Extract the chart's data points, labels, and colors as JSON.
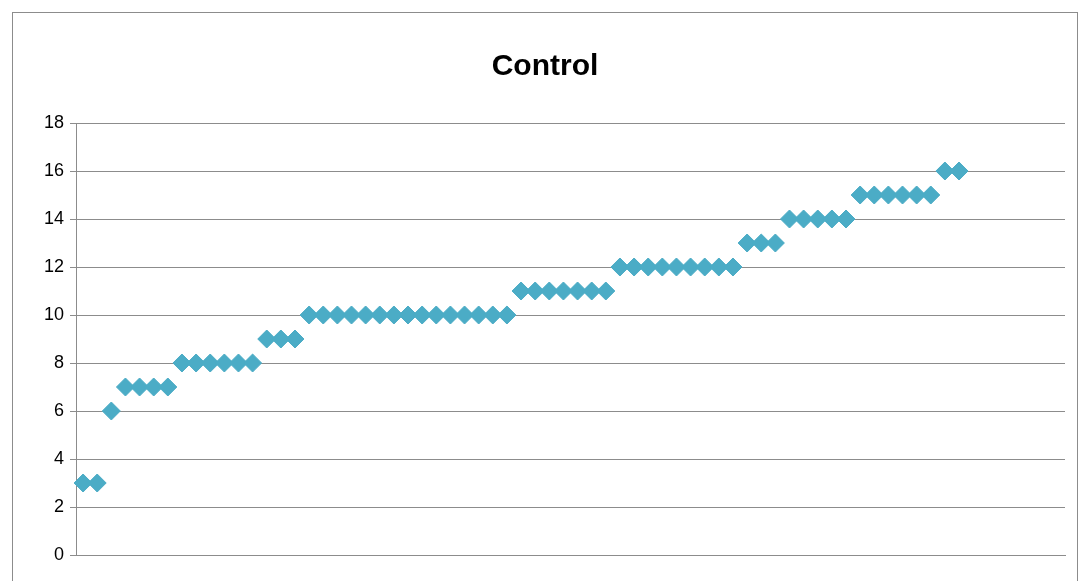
{
  "chart_data": {
    "type": "scatter",
    "title": "Control",
    "categories": [
      null,
      null,
      null,
      null,
      null,
      null,
      null,
      null,
      null,
      null,
      null,
      null,
      null,
      null,
      null,
      null,
      null,
      null,
      null,
      null,
      null,
      null,
      null,
      null,
      null,
      null,
      null,
      null,
      null,
      null,
      null,
      null,
      null,
      null,
      null,
      null,
      null,
      null,
      null,
      null,
      null,
      null,
      null,
      null,
      null,
      null,
      null,
      null,
      null,
      null,
      null,
      null,
      null,
      null,
      null,
      null,
      null,
      null,
      null,
      null,
      null,
      null,
      null,
      null,
      null,
      null,
      null,
      null,
      null,
      null
    ],
    "values": [
      3,
      3,
      6,
      7,
      7,
      7,
      7,
      8,
      8,
      8,
      8,
      8,
      8,
      9,
      9,
      9,
      10,
      10,
      10,
      10,
      10,
      10,
      10,
      10,
      10,
      10,
      10,
      10,
      10,
      10,
      10,
      11,
      11,
      11,
      11,
      11,
      11,
      11,
      12,
      12,
      12,
      12,
      12,
      12,
      12,
      12,
      12,
      13,
      13,
      13,
      14,
      14,
      14,
      14,
      14,
      15,
      15,
      15,
      15,
      15,
      15,
      16,
      16,
      null,
      null,
      null,
      null,
      null,
      null,
      null
    ],
    "color": "#4bacc6",
    "marker": "diamond",
    "ylim": [
      0,
      18
    ],
    "yticks": [
      0,
      2,
      4,
      6,
      8,
      10,
      12,
      14,
      16,
      18
    ],
    "grid": "y",
    "legend": false
  }
}
